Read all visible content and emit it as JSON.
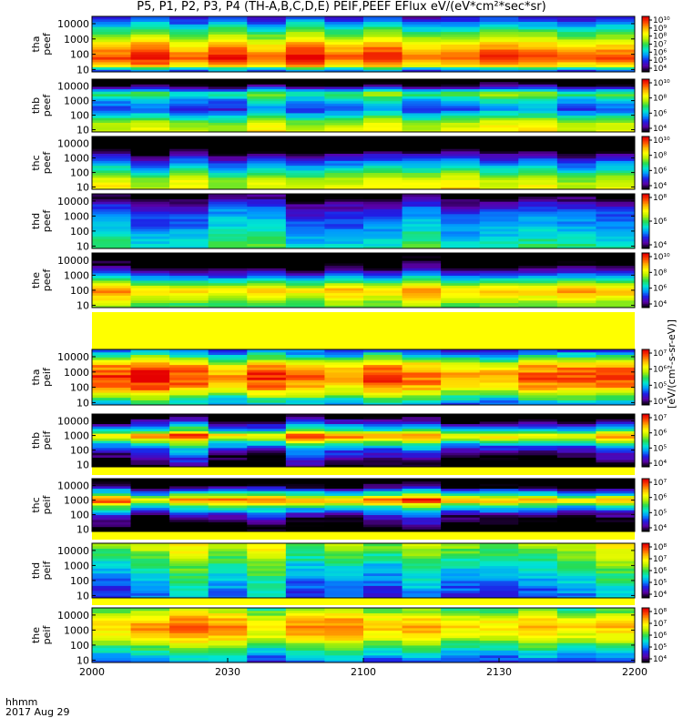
{
  "title": "P5, P1, P2, P3, P4 (TH-A,B,C,D,E) PEIF,PEEF EFlux eV/(eV*cm²*sec*sr)",
  "time_axis": {
    "label_line1": "hhmm",
    "label_line2": "2017 Aug 29",
    "ticks": [
      "2000",
      "2030",
      "2100",
      "2130",
      "2200"
    ],
    "tick_minutes": [
      0,
      30,
      60,
      90,
      120
    ]
  },
  "colorbar_label": "[eV/(cm²-s-sr-eV)]",
  "panel_ylabels": [
    "tha peef",
    "thb peef",
    "thc peef",
    "thd peef",
    "the peef",
    "tha peif",
    "thb peif",
    "thc peif",
    "thd peif",
    "the peif"
  ],
  "y_ticks": [
    "10",
    "100",
    "1000",
    "10000"
  ],
  "colors": {
    "scale": [
      "#000000",
      "#5a00a8",
      "#1e1ee6",
      "#0096ff",
      "#00e6d2",
      "#28dc50",
      "#b4f000",
      "#ffff00",
      "#ffb400",
      "#ff5000",
      "#e60000"
    ],
    "gap": "#ffff00"
  },
  "chart_data": {
    "type": "heatmap",
    "title": "P5, P1, P2, P3, P4 (TH-A,B,C,D,E) PEIF,PEEF EFlux eV/(eV*cm²*sec*sr)",
    "xlabel": "hhmm 2017 Aug 29",
    "xlim": [
      "20:00",
      "22:00"
    ],
    "colorbar_label": "[eV/(cm²-s-sr-eV)]",
    "value_scale": "log10 energy flux",
    "panels": [
      {
        "name": "tha peef",
        "ylabel": "tha peef",
        "ylim": [
          7,
          30000
        ],
        "y_scale": "log",
        "colorbar_ticks": [
          "10⁴",
          "10⁵",
          "10⁶",
          "10⁷",
          "10⁸",
          "10⁹",
          "10¹⁰"
        ],
        "clim": [
          3.0,
          10.5
        ],
        "segments": 14,
        "profile": [
          [
            1.0,
            5.0
          ],
          [
            1.3,
            9.0
          ],
          [
            1.8,
            10.0
          ],
          [
            2.5,
            9.0
          ],
          [
            3.2,
            7.5
          ],
          [
            3.8,
            6.0
          ],
          [
            4.4,
            4.5
          ]
        ]
      },
      {
        "name": "thb peef",
        "ylabel": "thb peef",
        "ylim": [
          7,
          30000
        ],
        "y_scale": "log",
        "colorbar_ticks": [
          "10⁴",
          "10⁶",
          "10⁸",
          "10¹⁰"
        ],
        "clim": [
          3.0,
          10.5
        ],
        "segments": 14,
        "profile": [
          [
            1.0,
            8.0
          ],
          [
            1.5,
            7.5
          ],
          [
            2.0,
            6.0
          ],
          [
            2.4,
            4.8
          ],
          [
            3.0,
            5.5
          ],
          [
            3.5,
            7.0
          ],
          [
            4.0,
            3.5
          ],
          [
            4.4,
            2.0
          ]
        ]
      },
      {
        "name": "thc peef",
        "ylabel": "thc peef",
        "ylim": [
          7,
          30000
        ],
        "y_scale": "log",
        "colorbar_ticks": [
          "10⁴",
          "10⁶",
          "10⁸",
          "10¹⁰"
        ],
        "clim": [
          3.0,
          10.5
        ],
        "segments": 14,
        "profile": [
          [
            1.0,
            8.0
          ],
          [
            1.6,
            7.5
          ],
          [
            2.2,
            6.0
          ],
          [
            2.7,
            5.0
          ],
          [
            3.3,
            3.5
          ],
          [
            3.8,
            2.0
          ],
          [
            4.4,
            1.5
          ]
        ]
      },
      {
        "name": "thd peef",
        "ylabel": "thd peef",
        "ylim": [
          7,
          30000
        ],
        "y_scale": "log",
        "colorbar_ticks": [
          "10⁴",
          "10⁶",
          "10⁸"
        ],
        "clim": [
          3.0,
          9.5
        ],
        "segments": 14,
        "profile": [
          [
            1.0,
            6.0
          ],
          [
            1.8,
            5.5
          ],
          [
            2.6,
            5.0
          ],
          [
            3.3,
            4.6
          ],
          [
            3.8,
            4.0
          ],
          [
            4.4,
            3.0
          ]
        ]
      },
      {
        "name": "the peef",
        "ylabel": "the peef",
        "ylim": [
          7,
          30000
        ],
        "y_scale": "log",
        "colorbar_ticks": [
          "10⁴",
          "10⁶",
          "10⁸",
          "10¹⁰"
        ],
        "clim": [
          3.0,
          10.5
        ],
        "segments": 14,
        "profile": [
          [
            1.0,
            7.0
          ],
          [
            1.5,
            8.0
          ],
          [
            2.0,
            9.0
          ],
          [
            2.5,
            7.0
          ],
          [
            3.0,
            5.0
          ],
          [
            3.6,
            3.0
          ],
          [
            4.4,
            2.0
          ]
        ]
      },
      {
        "name": "tha peif",
        "ylabel": "tha peif",
        "ylim": [
          7,
          30000
        ],
        "y_scale": "log",
        "colorbar_ticks": [
          "10⁴",
          "10⁵",
          "10⁶",
          "10⁷"
        ],
        "clim": [
          3.0,
          7.5
        ],
        "segments": 14,
        "profile": [
          [
            1.0,
            4.5
          ],
          [
            2.0,
            6.5
          ],
          [
            2.7,
            7.0
          ],
          [
            3.4,
            6.5
          ],
          [
            4.0,
            5.0
          ],
          [
            4.4,
            4.0
          ]
        ]
      },
      {
        "name": "thb peif",
        "ylabel": "thb peif",
        "ylim": [
          7,
          30000
        ],
        "y_scale": "log",
        "colorbar_ticks": [
          "10⁴",
          "10⁵",
          "10⁶",
          "10⁷"
        ],
        "clim": [
          3.0,
          7.5
        ],
        "segments": 14,
        "profile": [
          [
            1.0,
            3.0
          ],
          [
            2.0,
            4.0
          ],
          [
            2.6,
            5.5
          ],
          [
            3.0,
            7.0
          ],
          [
            3.4,
            5.0
          ],
          [
            4.0,
            3.5
          ],
          [
            4.4,
            2.5
          ]
        ]
      },
      {
        "name": "thc peif",
        "ylabel": "thc peif",
        "ylim": [
          7,
          30000
        ],
        "y_scale": "log",
        "colorbar_ticks": [
          "10⁴",
          "10⁵",
          "10⁶",
          "10⁷"
        ],
        "clim": [
          3.0,
          7.5
        ],
        "segments": 14,
        "profile": [
          [
            1.0,
            2.5
          ],
          [
            2.0,
            3.5
          ],
          [
            2.6,
            5.0
          ],
          [
            3.0,
            7.0
          ],
          [
            3.4,
            5.0
          ],
          [
            4.0,
            3.0
          ],
          [
            4.4,
            2.0
          ]
        ]
      },
      {
        "name": "thd peif",
        "ylabel": "thd peif",
        "ylim": [
          7,
          30000
        ],
        "y_scale": "log",
        "colorbar_ticks": [
          "10⁴",
          "10⁵",
          "10⁶",
          "10⁷",
          "10⁸"
        ],
        "clim": [
          3.0,
          8.5
        ],
        "segments": 14,
        "profile": [
          [
            1.0,
            4.5
          ],
          [
            2.0,
            5.0
          ],
          [
            3.0,
            5.5
          ],
          [
            3.6,
            6.0
          ],
          [
            4.4,
            6.5
          ]
        ]
      },
      {
        "name": "the peif",
        "ylabel": "the peif",
        "ylim": [
          7,
          30000
        ],
        "y_scale": "log",
        "colorbar_ticks": [
          "10⁴",
          "10⁵",
          "10⁶",
          "10⁷",
          "10⁸"
        ],
        "clim": [
          3.0,
          8.5
        ],
        "segments": 14,
        "profile": [
          [
            1.0,
            4.5
          ],
          [
            2.0,
            6.0
          ],
          [
            2.6,
            7.0
          ],
          [
            3.2,
            7.5
          ],
          [
            3.8,
            7.0
          ],
          [
            4.4,
            6.0
          ]
        ]
      }
    ]
  }
}
